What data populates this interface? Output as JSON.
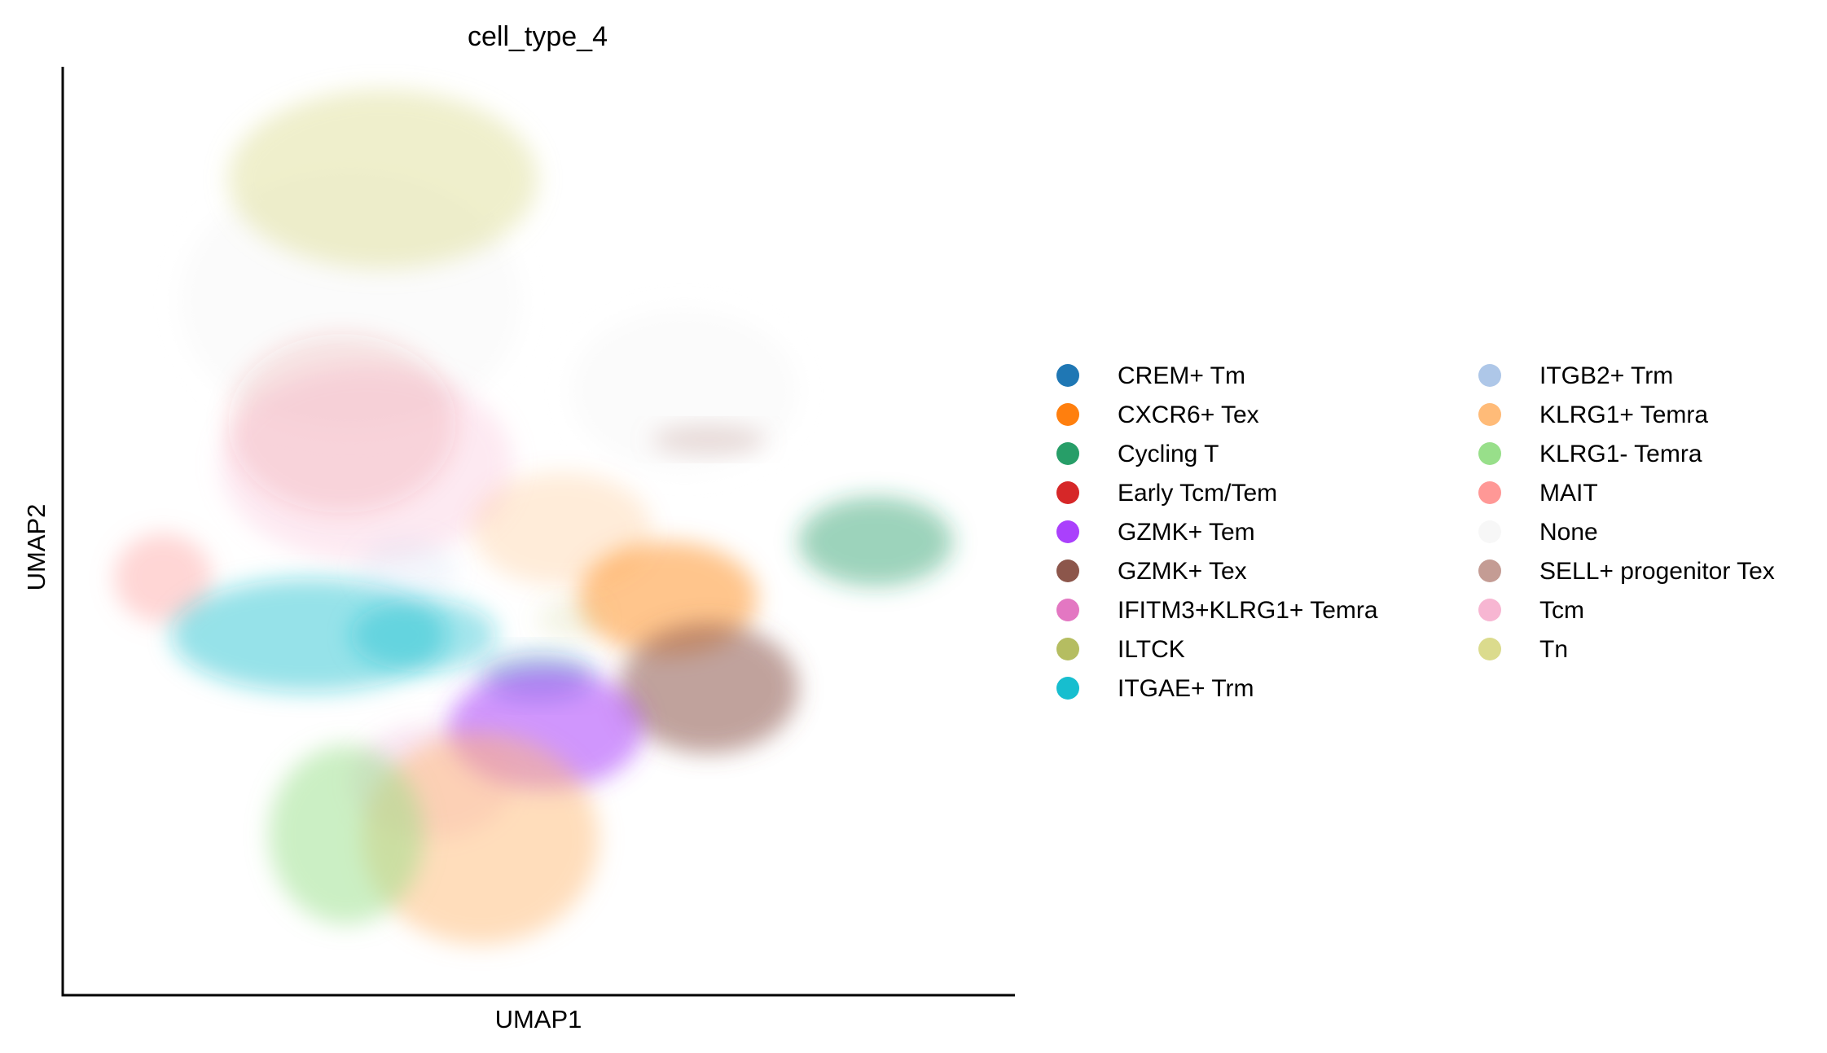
{
  "chart_data": {
    "type": "scatter",
    "title": "cell_type_4",
    "xlabel": "UMAP1",
    "ylabel": "UMAP2",
    "x_ticks": "none",
    "y_ticks": "none",
    "grid": false,
    "legend_position": "right",
    "legend_columns": 2,
    "categories": [
      {
        "name": "CREM+ Tm",
        "color": "#1f77b4"
      },
      {
        "name": "CXCR6+ Tex",
        "color": "#ff7f0e"
      },
      {
        "name": "Cycling T",
        "color": "#279e68"
      },
      {
        "name": "Early Tcm/Tem",
        "color": "#d62728"
      },
      {
        "name": "GZMK+ Tem",
        "color": "#aa40fc"
      },
      {
        "name": "GZMK+ Tex",
        "color": "#8c564b"
      },
      {
        "name": "IFITM3+KLRG1+ Temra",
        "color": "#e377c2"
      },
      {
        "name": "ILTCK",
        "color": "#b5bd61"
      },
      {
        "name": "ITGAE+ Trm",
        "color": "#17becf"
      },
      {
        "name": "ITGB2+ Trm",
        "color": "#aec7e8"
      },
      {
        "name": "KLRG1+ Temra",
        "color": "#ffbb78"
      },
      {
        "name": "KLRG1- Temra",
        "color": "#98df8a"
      },
      {
        "name": "MAIT",
        "color": "#ff9896"
      },
      {
        "name": "None",
        "color": "#f7f7f7"
      },
      {
        "name": "SELL+ progenitor Tex",
        "color": "#c49c94"
      },
      {
        "name": "Tcm",
        "color": "#f7b6d2"
      },
      {
        "name": "Tn",
        "color": "#dbdb8d"
      }
    ]
  }
}
